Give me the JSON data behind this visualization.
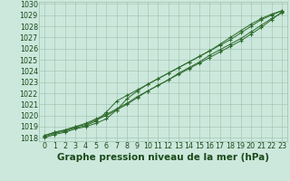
{
  "title": "Graphe pression niveau de la mer (hPa)",
  "xlabel_hours": [
    0,
    1,
    2,
    3,
    4,
    5,
    6,
    7,
    8,
    9,
    10,
    11,
    12,
    13,
    14,
    15,
    16,
    17,
    18,
    19,
    20,
    21,
    22,
    23
  ],
  "ylim": [
    1018,
    1030
  ],
  "yticks": [
    1018,
    1019,
    1020,
    1021,
    1022,
    1023,
    1024,
    1025,
    1026,
    1027,
    1028,
    1029,
    1030
  ],
  "series": [
    [
      1018.2,
      1018.5,
      1018.7,
      1019.0,
      1019.3,
      1019.7,
      1020.1,
      1020.6,
      1021.1,
      1021.7,
      1022.2,
      1022.7,
      1023.2,
      1023.7,
      1024.2,
      1024.7,
      1025.2,
      1025.7,
      1026.2,
      1026.7,
      1027.3,
      1027.9,
      1028.6,
      1029.3
    ],
    [
      1018.2,
      1018.5,
      1018.7,
      1019.0,
      1019.2,
      1019.6,
      1020.0,
      1020.5,
      1021.0,
      1021.6,
      1022.2,
      1022.7,
      1023.2,
      1023.8,
      1024.3,
      1024.8,
      1025.4,
      1025.9,
      1026.4,
      1026.9,
      1027.5,
      1028.1,
      1028.7,
      1029.2
    ],
    [
      1018.1,
      1018.4,
      1018.6,
      1018.9,
      1019.1,
      1019.5,
      1020.3,
      1021.3,
      1021.8,
      1022.3,
      1022.8,
      1023.3,
      1023.8,
      1024.3,
      1024.8,
      1025.3,
      1025.8,
      1026.3,
      1026.8,
      1027.4,
      1028.0,
      1028.6,
      1029.0,
      1029.4
    ],
    [
      1018.0,
      1018.3,
      1018.5,
      1018.8,
      1019.0,
      1019.3,
      1019.7,
      1020.5,
      1021.5,
      1022.2,
      1022.8,
      1023.3,
      1023.8,
      1024.3,
      1024.8,
      1025.3,
      1025.8,
      1026.4,
      1027.0,
      1027.6,
      1028.2,
      1028.7,
      1029.1,
      1029.4
    ]
  ],
  "line_color": "#2d6a2d",
  "marker": "+",
  "bg_color": "#cce8dc",
  "grid_color": "#9dbfaf",
  "tick_label_color": "#1a4a1a",
  "title_color": "#1a4a1a",
  "title_fontsize": 7.5,
  "tick_fontsize": 5.8
}
